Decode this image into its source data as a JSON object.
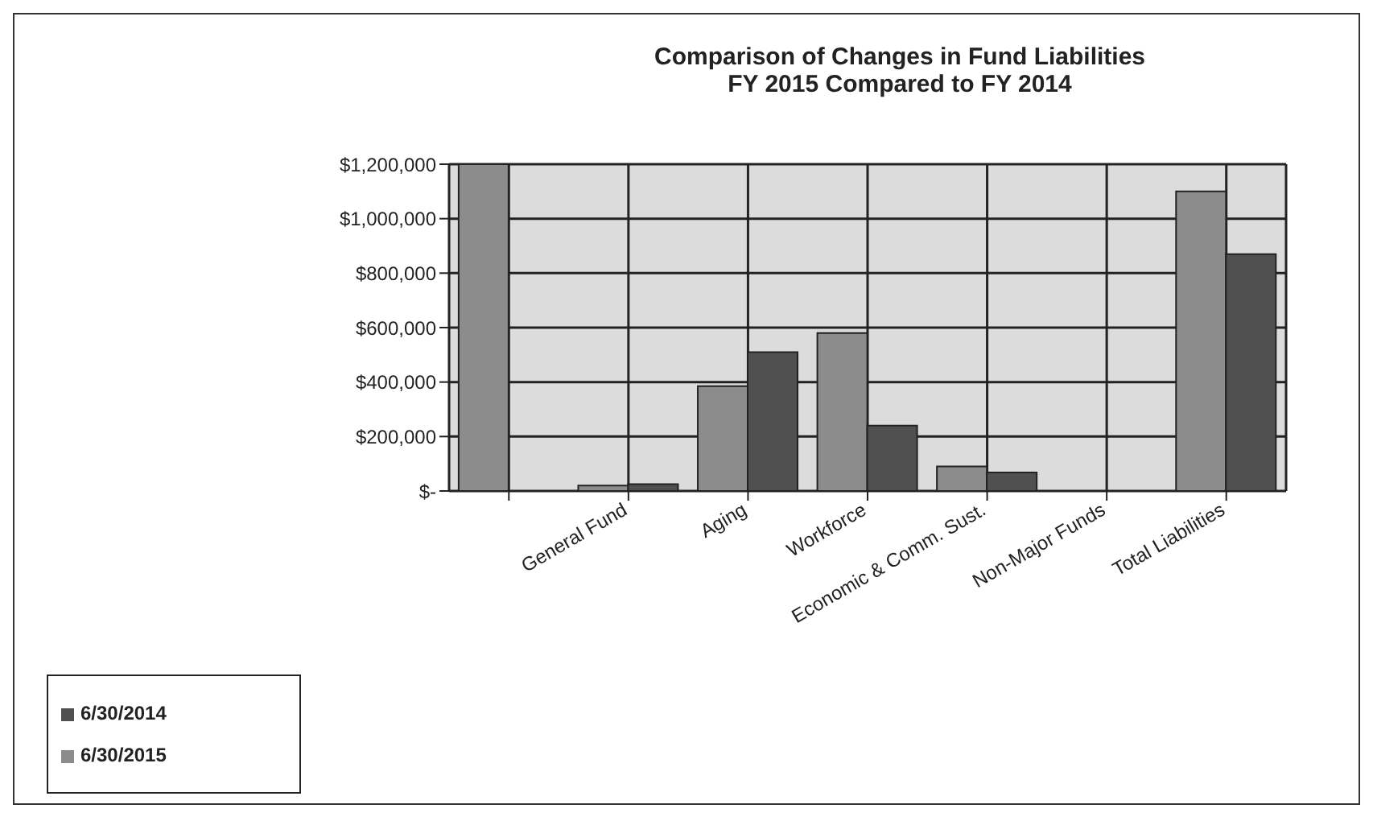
{
  "chart_data": {
    "type": "bar",
    "title": "Comparison of Changes in Fund Liabilities",
    "subtitle": "FY 2015 Compared to FY 2014",
    "categories": [
      null,
      "General Fund",
      "Aging",
      "Workforce",
      "Economic & Comm. Sust.",
      "Non-Major Funds",
      "Total Liabilities"
    ],
    "series": [
      {
        "name": "6/30/2015",
        "color": "#8c8c8c",
        "values": [
          1200000,
          20000,
          385000,
          580000,
          90000,
          0,
          1100000
        ]
      },
      {
        "name": "6/30/2014",
        "color": "#505050",
        "values": [
          null,
          25000,
          510000,
          240000,
          68000,
          0,
          870000
        ]
      }
    ],
    "ylim": [
      0,
      1200000
    ],
    "yticks": [
      {
        "value": 0,
        "label": "$-"
      },
      {
        "value": 200000,
        "label": "$200,000"
      },
      {
        "value": 400000,
        "label": "$400,000"
      },
      {
        "value": 600000,
        "label": "$600,000"
      },
      {
        "value": 800000,
        "label": "$800,000"
      },
      {
        "value": 1000000,
        "label": "$1,000,000"
      },
      {
        "value": 1200000,
        "label": "$1,200,000"
      }
    ],
    "grid": true,
    "legend": "bottom left"
  }
}
